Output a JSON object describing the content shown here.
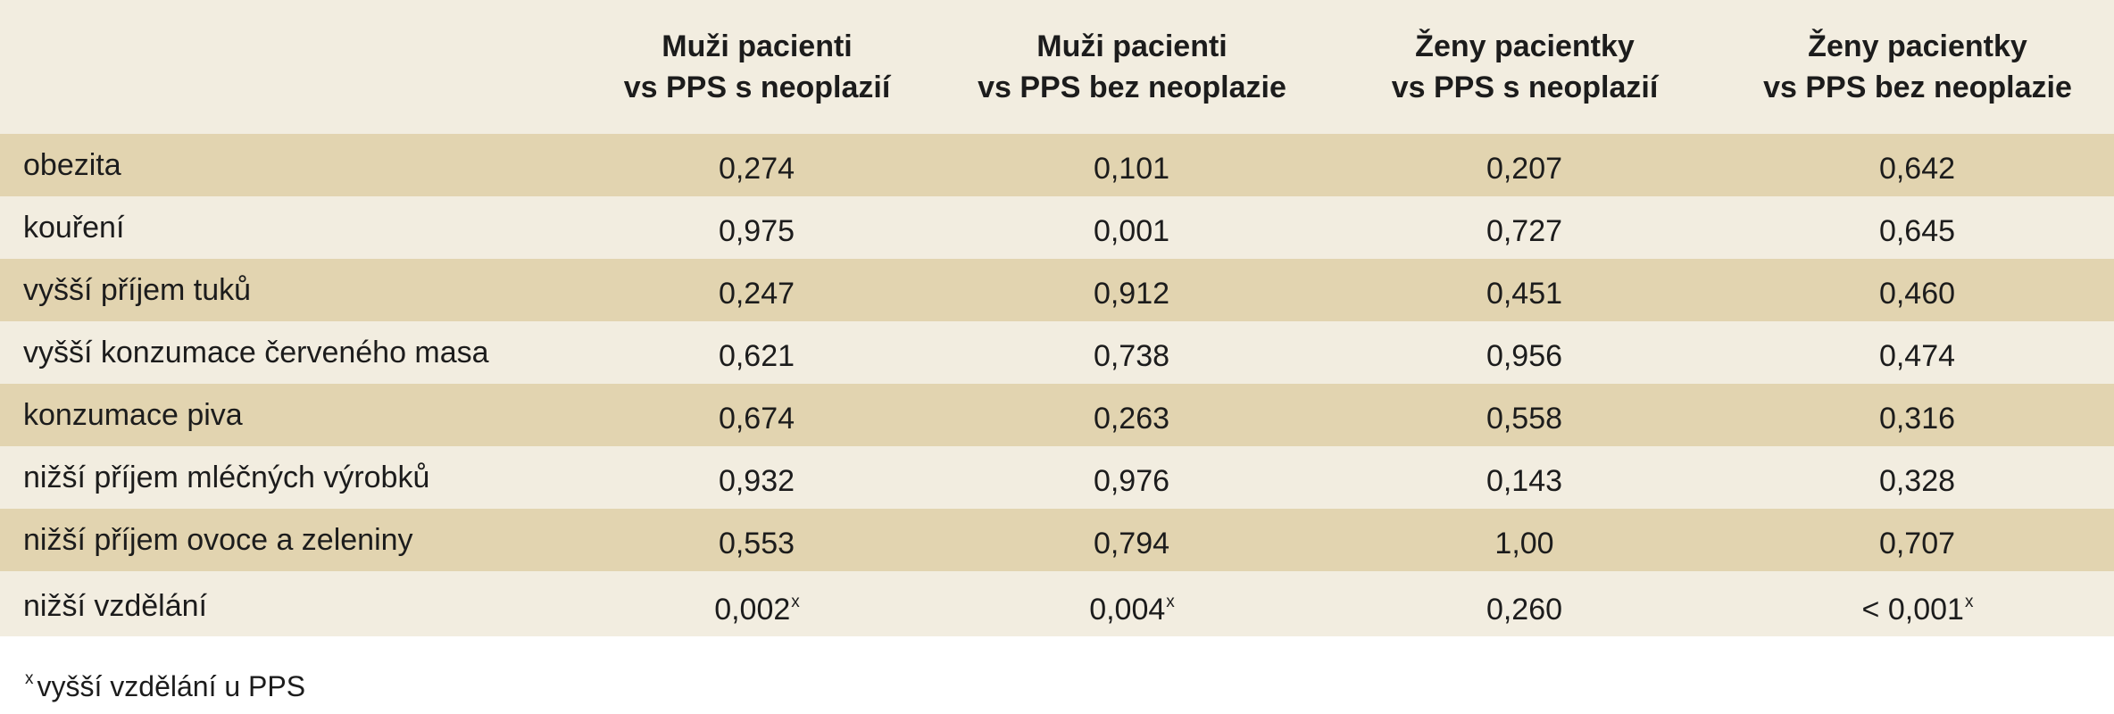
{
  "table": {
    "headers": [
      {
        "line1": "",
        "line2": ""
      },
      {
        "line1": "Muži pacienti",
        "line2": "vs PPS s neoplazií"
      },
      {
        "line1": "Muži pacienti",
        "line2": "vs PPS bez neoplazie"
      },
      {
        "line1": "Ženy pacientky",
        "line2": "vs PPS s neoplazií"
      },
      {
        "line1": "Ženy pacientky",
        "line2": "vs PPS bez neoplazie"
      }
    ],
    "rows": [
      {
        "label": "obezita",
        "values": [
          "0,274",
          "0,101",
          "0,207",
          "0,642"
        ],
        "marks": [
          "",
          "",
          "",
          ""
        ]
      },
      {
        "label": "kouření",
        "values": [
          "0,975",
          "0,001",
          "0,727",
          "0,645"
        ],
        "marks": [
          "",
          "",
          "",
          ""
        ]
      },
      {
        "label": "vyšší příjem tuků",
        "values": [
          "0,247",
          "0,912",
          "0,451",
          "0,460"
        ],
        "marks": [
          "",
          "",
          "",
          ""
        ]
      },
      {
        "label": "vyšší konzumace červeného masa",
        "values": [
          "0,621",
          "0,738",
          "0,956",
          "0,474"
        ],
        "marks": [
          "",
          "",
          "",
          ""
        ]
      },
      {
        "label": "konzumace piva",
        "values": [
          "0,674",
          "0,263",
          "0,558",
          "0,316"
        ],
        "marks": [
          "",
          "",
          "",
          ""
        ]
      },
      {
        "label": "nižší příjem mléčných výrobků",
        "values": [
          "0,932",
          "0,976",
          "0,143",
          "0,328"
        ],
        "marks": [
          "",
          "",
          "",
          ""
        ]
      },
      {
        "label": "nižší příjem ovoce a zeleniny",
        "values": [
          "0,553",
          "0,794",
          "1,00",
          "0,707"
        ],
        "marks": [
          "",
          "",
          "",
          ""
        ]
      },
      {
        "label": "nižší vzdělání",
        "values": [
          "0,002",
          "0,004",
          "0,260",
          "< 0,001"
        ],
        "marks": [
          "x",
          "x",
          "",
          "x"
        ]
      }
    ]
  },
  "footnote": {
    "mark": "x",
    "text": "vyšší vzdělání u PPS"
  },
  "colors": {
    "band": "#e2d4b0",
    "background": "#f2ede0"
  }
}
